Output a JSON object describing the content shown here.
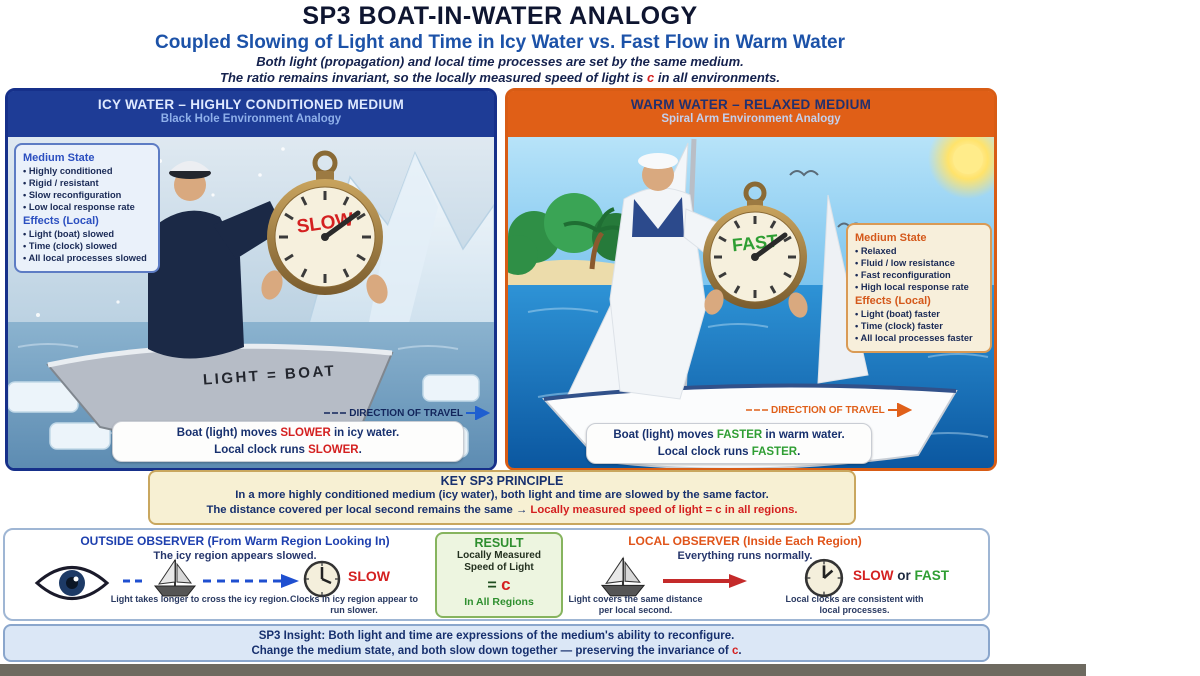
{
  "header": {
    "title": "SP3 BOAT-IN-WATER ANALOGY",
    "subtitle": "Coupled Slowing of Light and Time in Icy Water vs. Fast Flow in Warm Water",
    "tagline1": "Both light (propagation) and local time processes are set by the same medium.",
    "tagline2_pre": "The ratio remains invariant, so the locally measured speed of light is ",
    "tagline2_c": "c",
    "tagline2_post": " in all environments."
  },
  "left_panel": {
    "title": "ICY WATER – HIGHLY CONDITIONED MEDIUM",
    "subtitle": "Black Hole Environment Analogy",
    "medium_state_title": "Medium State",
    "medium_state_items": [
      "Highly conditioned",
      "Rigid / resistant",
      "Slow reconfiguration",
      "Low local response rate"
    ],
    "effects_title": "Effects (Local)",
    "effects_items": [
      "Light (boat) slowed",
      "Time (clock) slowed",
      "All local processes slowed"
    ],
    "clock_label": "SLOW",
    "boat_label": "LIGHT = BOAT",
    "direction_label": "DIRECTION OF TRAVEL",
    "caption1_pre": "Boat (light) moves ",
    "caption1_em": "SLOWER",
    "caption1_post": " in icy water.",
    "caption2_pre": "Local clock runs ",
    "caption2_em": "SLOWER",
    "caption2_post": "."
  },
  "right_panel": {
    "title": "WARM WATER – RELAXED MEDIUM",
    "subtitle": "Spiral Arm Environment Analogy",
    "medium_state_title": "Medium State",
    "medium_state_items": [
      "Relaxed",
      "Fluid / low resistance",
      "Fast reconfiguration",
      "High local response rate"
    ],
    "effects_title": "Effects (Local)",
    "effects_items": [
      "Light (boat) faster",
      "Time (clock) faster",
      "All local processes faster"
    ],
    "clock_label": "FAST",
    "direction_label": "DIRECTION OF TRAVEL",
    "caption1_pre": "Boat (light) moves ",
    "caption1_em": "FASTER",
    "caption1_post": " in warm water.",
    "caption2_pre": "Local clock runs ",
    "caption2_em": "FASTER",
    "caption2_post": "."
  },
  "key_principle": {
    "title": "KEY SP3 PRINCIPLE",
    "line1": "In a more highly conditioned medium (icy water), both light and time are slowed by the same factor.",
    "line2_pre": "The distance covered per local second remains the same ",
    "line2_arrow": "→",
    "line2_em": " Locally measured speed of light = c in all regions."
  },
  "observers": {
    "outside": {
      "title": "OUTSIDE OBSERVER (From Warm Region Looking In)",
      "subtitle": "The icy region appears slowed.",
      "boat_note": "Light takes longer to cross the icy region.",
      "clock_word": "SLOW",
      "clock_note": "Clocks in icy region appear to run slower."
    },
    "result": {
      "title": "RESULT",
      "line1": "Locally Measured",
      "line2": "Speed of Light",
      "equals": "= ",
      "c": "c",
      "foot": "In All Regions"
    },
    "local": {
      "title": "LOCAL OBSERVER (Inside Each Region)",
      "subtitle": "Everything runs normally.",
      "boat_note": "Light covers the same distance per local second.",
      "clock_word_slow": "SLOW",
      "clock_word_or": " or ",
      "clock_word_fast": "FAST",
      "clock_note": "Local clocks are consistent with local processes."
    }
  },
  "insight": {
    "line1": "SP3 Insight: Both light and time are expressions of the medium's ability to reconfigure.",
    "line2_pre": "Change the medium state, and both slow down together — preserving the invariance of ",
    "line2_c": "c",
    "line2_post": "."
  },
  "colors": {
    "slow_red": "#d42020",
    "fast_green": "#2f9e33",
    "icy_blue": "#1e3c96",
    "warm_orange": "#e05f17",
    "c_red": "#d42020"
  }
}
